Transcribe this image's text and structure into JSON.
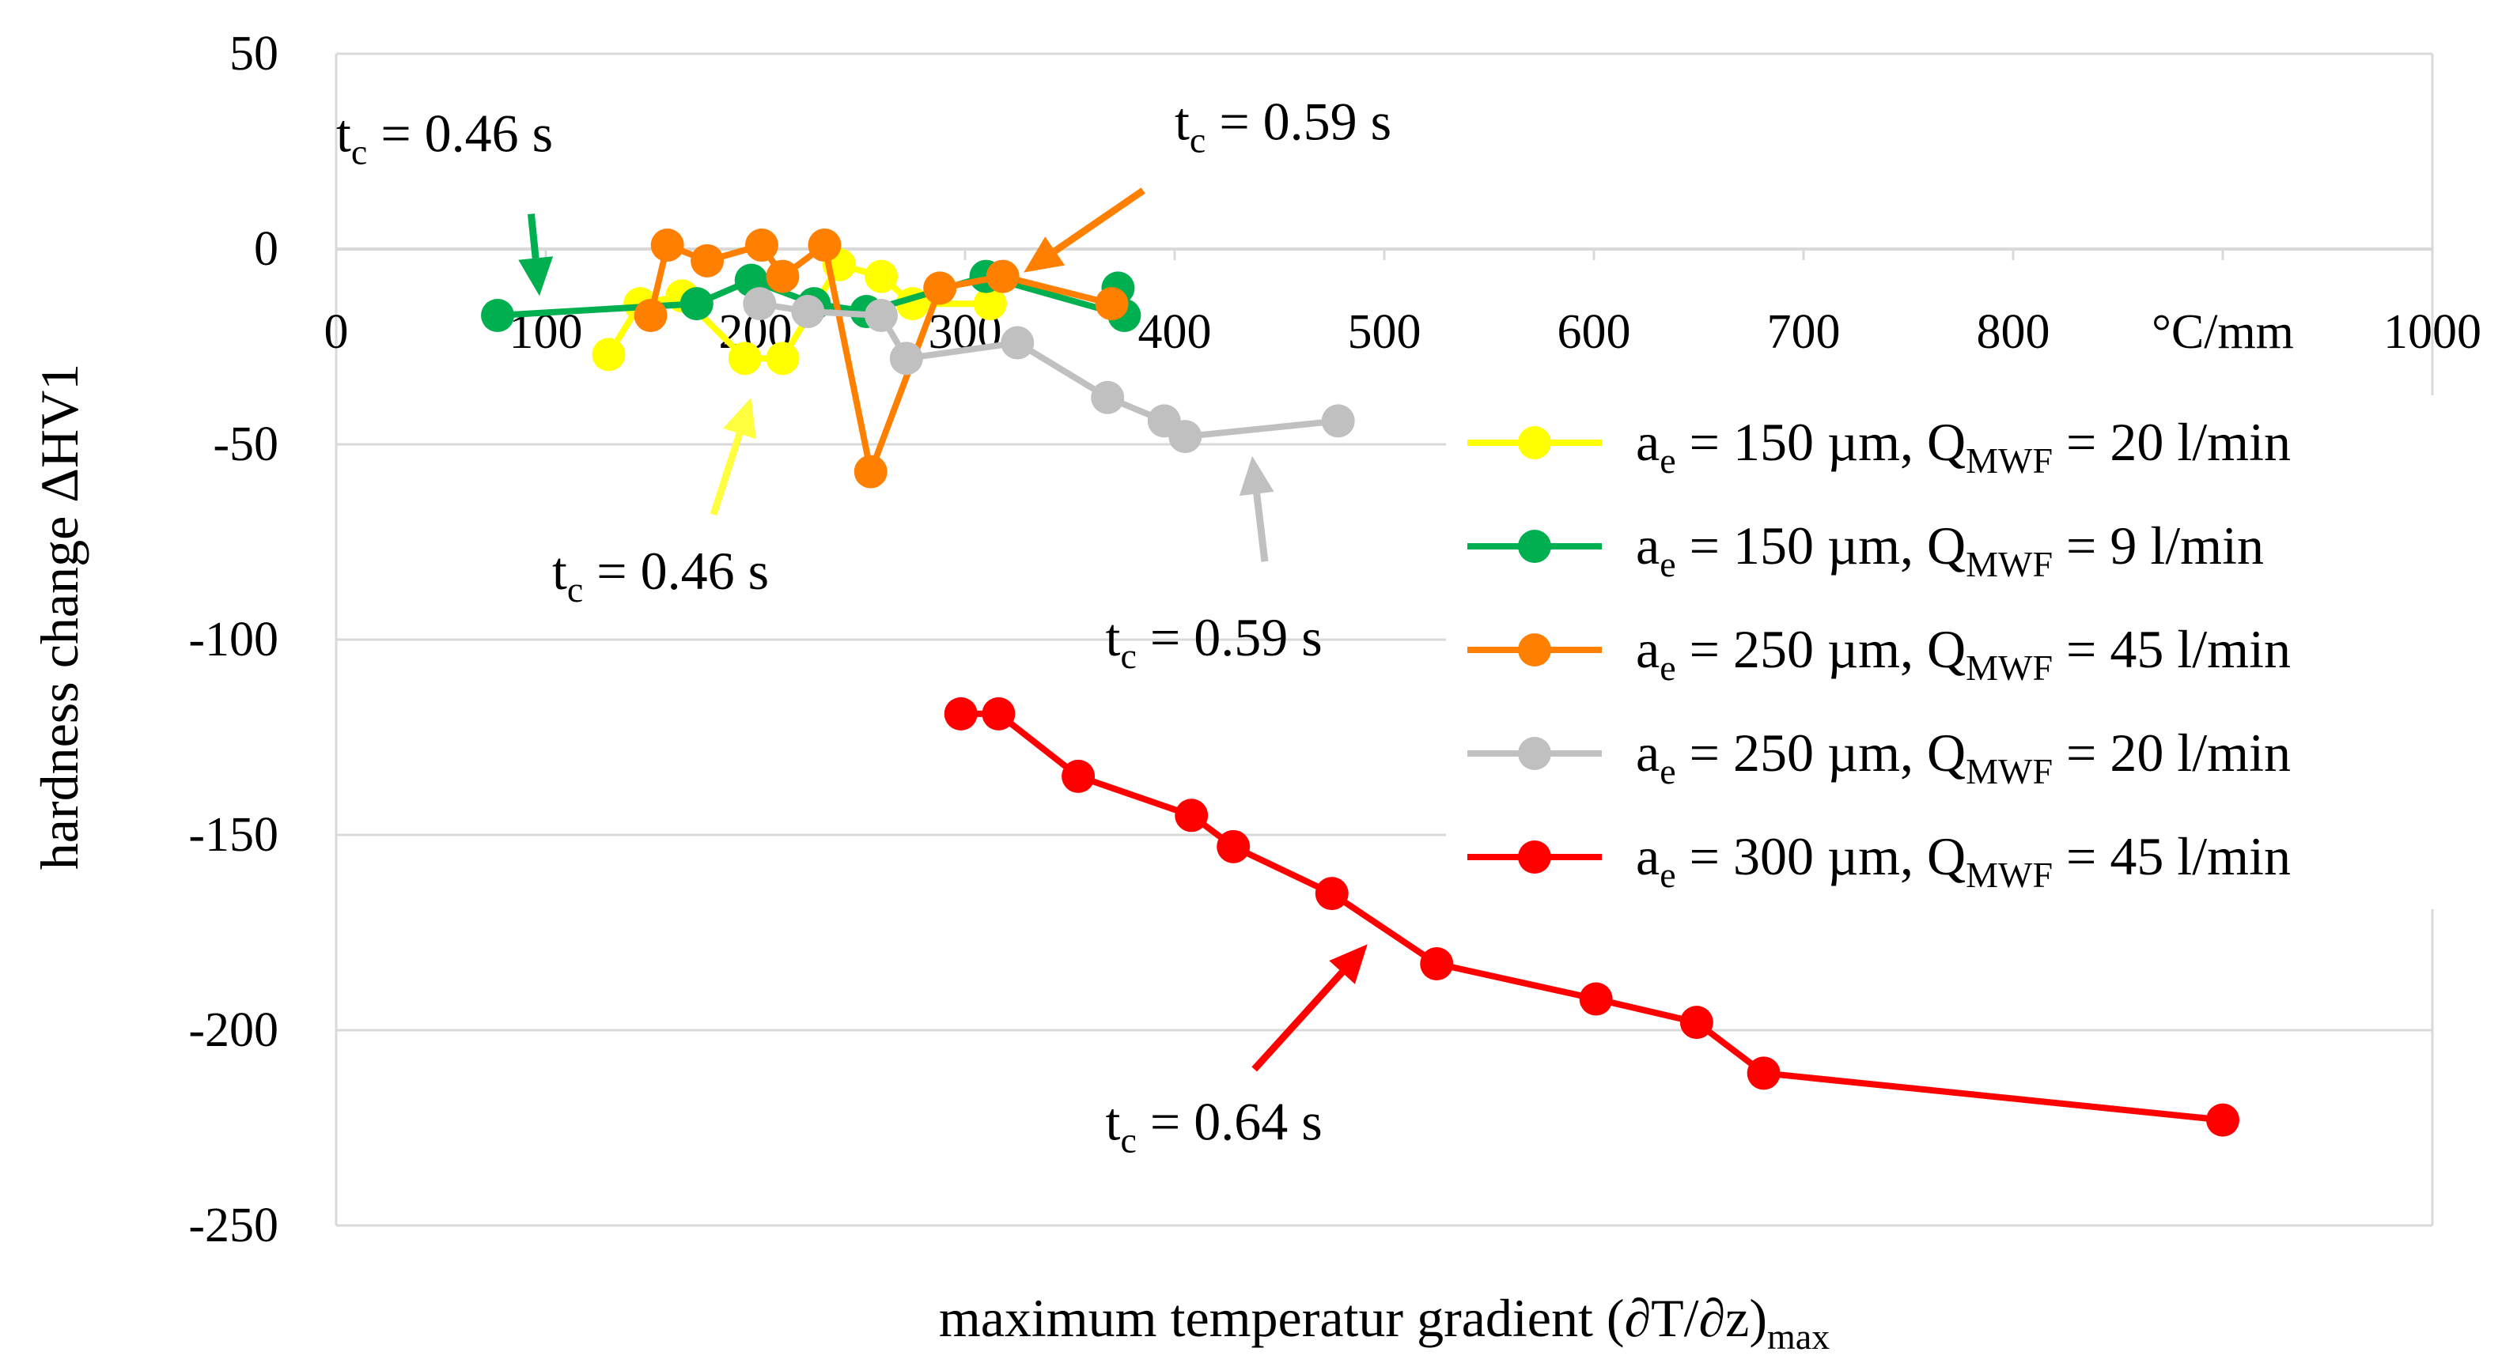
{
  "chart_data": {
    "type": "line",
    "title": "",
    "xlabel": "maximum temperatur gradient (∂T/∂z)",
    "xlabel_sub": "max",
    "ylabel": "hardness change ΔHV1",
    "xlim": [
      0,
      1000
    ],
    "ylim": [
      -250,
      50
    ],
    "x_ticks": [
      "0",
      "100",
      "200",
      "300",
      "400",
      "500",
      "600",
      "700",
      "800",
      "°C/mm",
      "1000"
    ],
    "y_ticks": [
      "50",
      "0",
      "-50",
      "-100",
      "-150",
      "-200",
      "-250"
    ],
    "grid": "horizontal",
    "legend_position": "right",
    "series": [
      {
        "name": "ae = 150 µm, QMWF = 20 l/min",
        "legend": {
          "a": "a",
          "a_sub": "e",
          "mid": " = 150 µm, Q",
          "q_sub": "MWF",
          "end": " = 20 l/min"
        },
        "color": "#ffff00",
        "points": [
          [
            130,
            -27
          ],
          [
            145,
            -14
          ],
          [
            165,
            -12
          ],
          [
            195,
            -28
          ],
          [
            213,
            -28
          ],
          [
            240,
            -4
          ],
          [
            260,
            -7
          ],
          [
            275,
            -14
          ],
          [
            312,
            -14
          ]
        ]
      },
      {
        "name": "ae = 150 µm, QMWF = 9 l/min",
        "legend": {
          "a": "a",
          "a_sub": "e",
          "mid": " = 150 µm, Q",
          "q_sub": "MWF",
          "end": " = 9 l/min"
        },
        "color": "#00b050",
        "points": [
          [
            77,
            -17
          ],
          [
            172,
            -14
          ],
          [
            198,
            -8
          ],
          [
            228,
            -14
          ],
          [
            253,
            -16
          ],
          [
            310,
            -7
          ],
          [
            376,
            -17
          ],
          [
            373,
            -10
          ]
        ]
      },
      {
        "name": "ae = 250 µm, QMWF = 45 l/min",
        "legend": {
          "a": "a",
          "a_sub": "e",
          "mid": " = 250 µm, Q",
          "q_sub": "MWF",
          "end": " = 45 l/min"
        },
        "color": "#ff8000",
        "points": [
          [
            150,
            -17
          ],
          [
            158,
            1
          ],
          [
            177,
            -3
          ],
          [
            203,
            1
          ],
          [
            213,
            -7
          ],
          [
            233,
            1
          ],
          [
            255,
            -57
          ],
          [
            288,
            -10
          ],
          [
            318,
            -7
          ],
          [
            370,
            -14
          ]
        ]
      },
      {
        "name": "ae = 250 µm, QMWF = 20 l/min",
        "legend": {
          "a": "a",
          "a_sub": "e",
          "mid": " = 250 µm, Q",
          "q_sub": "MWF",
          "end": " = 20 l/min"
        },
        "color": "#c0c0c0",
        "points": [
          [
            202,
            -14
          ],
          [
            225,
            -16
          ],
          [
            260,
            -17
          ],
          [
            272,
            -28
          ],
          [
            325,
            -24
          ],
          [
            368,
            -38
          ],
          [
            395,
            -44
          ],
          [
            405,
            -48
          ],
          [
            478,
            -44
          ]
        ]
      },
      {
        "name": "ae = 300 µm, QMWF = 45 l/min",
        "legend": {
          "a": "a",
          "a_sub": "e",
          "mid": " = 300 µm, Q",
          "q_sub": "MWF",
          "end": " = 45 l/min"
        },
        "color": "#ff0000",
        "points": [
          [
            298,
            -119
          ],
          [
            316,
            -119
          ],
          [
            354,
            -135
          ],
          [
            408,
            -145
          ],
          [
            428,
            -153
          ],
          [
            475,
            -165
          ],
          [
            525,
            -183
          ],
          [
            601,
            -192
          ],
          [
            649,
            -198
          ],
          [
            681,
            -211
          ],
          [
            900,
            -223
          ]
        ]
      }
    ],
    "annotations": [
      {
        "id": "green",
        "t": "t",
        "sub": "c",
        "rest": " = 0.46 s",
        "color": "#00b050",
        "text_at": [
          0,
          25
        ],
        "arrow_from": [
          93,
          9
        ],
        "arrow_to": [
          97,
          -12
        ]
      },
      {
        "id": "orange",
        "t": "t",
        "sub": "c",
        "rest": " = 0.59 s",
        "color": "#ff8000",
        "text_at": [
          400,
          28
        ],
        "arrow_from": [
          385,
          15
        ],
        "arrow_to": [
          328,
          -6
        ]
      },
      {
        "id": "yellow",
        "t": "t",
        "sub": "c",
        "rest": " = 0.46 s",
        "color": "#ffff40",
        "text_at": [
          103,
          -87
        ],
        "arrow_from": [
          180,
          -68
        ],
        "arrow_to": [
          198,
          -38
        ]
      },
      {
        "id": "gray",
        "t": "t",
        "sub": "c",
        "rest": " = 0.59 s",
        "color": "#c0c0c0",
        "text_at": [
          367,
          -104
        ],
        "arrow_from": [
          443,
          -80
        ],
        "arrow_to": [
          437,
          -53
        ]
      },
      {
        "id": "red",
        "t": "t",
        "sub": "c",
        "rest": " = 0.64 s",
        "color": "#ff0000",
        "text_at": [
          367,
          -228
        ],
        "arrow_from": [
          438,
          -210
        ],
        "arrow_to": [
          492,
          -178
        ]
      }
    ]
  }
}
